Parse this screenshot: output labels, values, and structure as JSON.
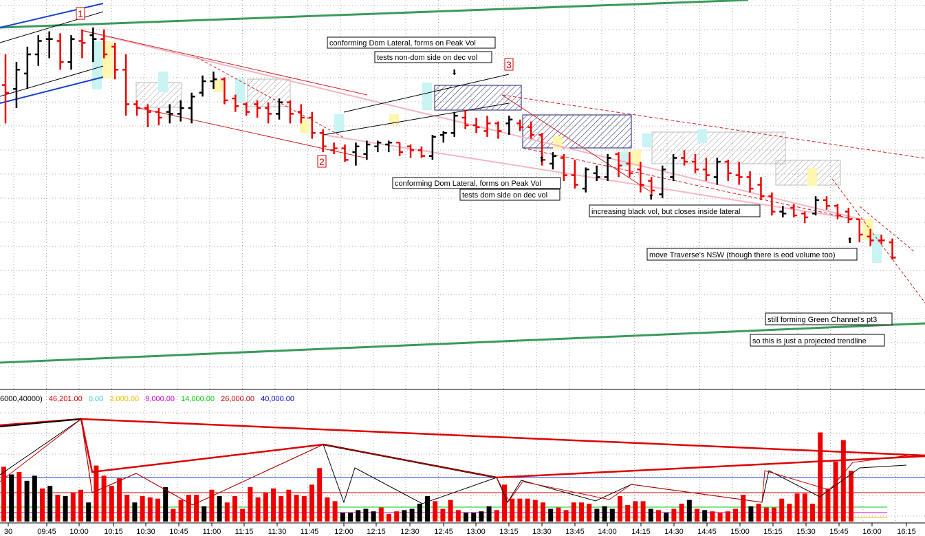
{
  "chart_data": {
    "type": "bar",
    "x_tick_labels": [
      "30",
      "09:45",
      "10:00",
      "10:15",
      "10:30",
      "10:45",
      "11:00",
      "11:15",
      "11:30",
      "11:45",
      "12:00",
      "12:15",
      "12:30",
      "12:45",
      "13:00",
      "13:15",
      "13:30",
      "13:45",
      "14:00",
      "14:15",
      "14:30",
      "14:45",
      "15:00",
      "15:15",
      "15:30",
      "15:45",
      "16:00",
      "16:15"
    ],
    "volume_legend": {
      "prefix": "6000,40000)",
      "current": "46,201.00",
      "levels": [
        {
          "label": "0.00",
          "color": "#33cccc"
        },
        {
          "label": "3,000.00",
          "color": "#e6c200"
        },
        {
          "label": "9,000.00",
          "color": "#cc00cc"
        },
        {
          "label": "14,000.00",
          "color": "#00cc00"
        },
        {
          "label": "26,000.00",
          "color": "#cc0000"
        },
        {
          "label": "40,000.00",
          "color": "#0000cc"
        }
      ]
    },
    "point_labels": [
      "1",
      "2",
      "3"
    ],
    "annotations": [
      "conforming Dom Lateral, forms on Peak Vol",
      "tests non-dom side on dec vol",
      "conforming Dom Lateral, forms on Peak Vol",
      "tests dom side on dec vol",
      "increasing black vol, but closes inside lateral",
      "move Traverse's NSW (though there is eod volume too)",
      "still forming Green Channel's pt3",
      "so this is just a projected trendline"
    ],
    "price_bars": [
      {
        "o": 72,
        "h": 88,
        "l": 52,
        "c": 68,
        "dir": "down"
      },
      {
        "o": 70,
        "h": 84,
        "l": 60,
        "c": 80,
        "dir": "up"
      },
      {
        "o": 78,
        "h": 92,
        "l": 70,
        "c": 88,
        "dir": "up"
      },
      {
        "o": 88,
        "h": 98,
        "l": 82,
        "c": 95,
        "dir": "up"
      },
      {
        "o": 96,
        "h": 100,
        "l": 86,
        "c": 96,
        "dir": "up"
      },
      {
        "o": 95,
        "h": 99,
        "l": 80,
        "c": 84,
        "dir": "down"
      },
      {
        "o": 84,
        "h": 98,
        "l": 80,
        "c": 96,
        "dir": "up"
      },
      {
        "o": 95,
        "h": 101,
        "l": 86,
        "c": 94,
        "dir": "down"
      },
      {
        "o": 98,
        "h": 102,
        "l": 84,
        "c": 96,
        "dir": "up"
      },
      {
        "o": 96,
        "h": 101,
        "l": 86,
        "c": 88,
        "dir": "down"
      },
      {
        "o": 92,
        "h": 94,
        "l": 75,
        "c": 80,
        "dir": "down"
      },
      {
        "o": 80,
        "h": 88,
        "l": 56,
        "c": 62,
        "dir": "down"
      },
      {
        "o": 62,
        "h": 64,
        "l": 56,
        "c": 60,
        "dir": "down"
      },
      {
        "o": 60,
        "h": 62,
        "l": 50,
        "c": 58,
        "dir": "down"
      },
      {
        "o": 58,
        "h": 60,
        "l": 51,
        "c": 55,
        "dir": "down"
      },
      {
        "o": 58,
        "h": 62,
        "l": 52,
        "c": 57,
        "dir": "up"
      },
      {
        "o": 57,
        "h": 64,
        "l": 53,
        "c": 60,
        "dir": "up"
      },
      {
        "o": 60,
        "h": 68,
        "l": 52,
        "c": 66,
        "dir": "up"
      },
      {
        "o": 68,
        "h": 77,
        "l": 66,
        "c": 74,
        "dir": "up"
      },
      {
        "o": 74,
        "h": 79,
        "l": 70,
        "c": 75,
        "dir": "up"
      },
      {
        "o": 75,
        "h": 76,
        "l": 62,
        "c": 64,
        "dir": "down"
      },
      {
        "o": 65,
        "h": 67,
        "l": 58,
        "c": 61,
        "dir": "down"
      },
      {
        "o": 62,
        "h": 63,
        "l": 56,
        "c": 58,
        "dir": "down"
      },
      {
        "o": 62,
        "h": 64,
        "l": 55,
        "c": 60,
        "dir": "down"
      },
      {
        "o": 60,
        "h": 63,
        "l": 52,
        "c": 57,
        "dir": "down"
      },
      {
        "o": 57,
        "h": 65,
        "l": 54,
        "c": 63,
        "dir": "up"
      },
      {
        "o": 63,
        "h": 64,
        "l": 52,
        "c": 57,
        "dir": "down"
      },
      {
        "o": 58,
        "h": 62,
        "l": 52,
        "c": 55,
        "dir": "down"
      },
      {
        "o": 55,
        "h": 58,
        "l": 44,
        "c": 47,
        "dir": "down"
      },
      {
        "o": 47,
        "h": 49,
        "l": 37,
        "c": 40,
        "dir": "down"
      },
      {
        "o": 38,
        "h": 42,
        "l": 36,
        "c": 39,
        "dir": "down"
      },
      {
        "o": 39,
        "h": 41,
        "l": 32,
        "c": 33,
        "dir": "down"
      },
      {
        "o": 37,
        "h": 42,
        "l": 30,
        "c": 40,
        "dir": "up"
      },
      {
        "o": 36,
        "h": 43,
        "l": 33,
        "c": 41,
        "dir": "up"
      },
      {
        "o": 40,
        "h": 43,
        "l": 37,
        "c": 42,
        "dir": "up"
      },
      {
        "o": 41,
        "h": 43,
        "l": 37,
        "c": 42,
        "dir": "up"
      },
      {
        "o": 42,
        "h": 42,
        "l": 35,
        "c": 37,
        "dir": "down"
      },
      {
        "o": 40,
        "h": 41,
        "l": 34,
        "c": 38,
        "dir": "down"
      },
      {
        "o": 38,
        "h": 40,
        "l": 34,
        "c": 35,
        "dir": "down"
      },
      {
        "o": 35,
        "h": 46,
        "l": 33,
        "c": 45,
        "dir": "up"
      },
      {
        "o": 46,
        "h": 48,
        "l": 42,
        "c": 47,
        "dir": "up"
      },
      {
        "o": 47,
        "h": 58,
        "l": 45,
        "c": 56,
        "dir": "up"
      },
      {
        "o": 55,
        "h": 59,
        "l": 49,
        "c": 51,
        "dir": "down"
      },
      {
        "o": 51,
        "h": 55,
        "l": 47,
        "c": 50,
        "dir": "down"
      },
      {
        "o": 48,
        "h": 56,
        "l": 45,
        "c": 52,
        "dir": "down"
      },
      {
        "o": 52,
        "h": 53,
        "l": 44,
        "c": 48,
        "dir": "down"
      },
      {
        "o": 52,
        "h": 56,
        "l": 46,
        "c": 54,
        "dir": "up"
      },
      {
        "o": 52,
        "h": 54,
        "l": 48,
        "c": 50,
        "dir": "down"
      },
      {
        "o": 50,
        "h": 53,
        "l": 44,
        "c": 46,
        "dir": "down"
      },
      {
        "o": 46,
        "h": 47,
        "l": 30,
        "c": 33,
        "dir": "down"
      },
      {
        "o": 31,
        "h": 37,
        "l": 28,
        "c": 35,
        "dir": "up"
      },
      {
        "o": 34,
        "h": 36,
        "l": 22,
        "c": 25,
        "dir": "down"
      },
      {
        "o": 25,
        "h": 33,
        "l": 18,
        "c": 20,
        "dir": "down"
      },
      {
        "o": 18,
        "h": 29,
        "l": 16,
        "c": 28,
        "dir": "up"
      },
      {
        "o": 26,
        "h": 30,
        "l": 22,
        "c": 24,
        "dir": "up"
      },
      {
        "o": 24,
        "h": 36,
        "l": 22,
        "c": 34,
        "dir": "up"
      },
      {
        "o": 36,
        "h": 37,
        "l": 24,
        "c": 30,
        "dir": "down"
      },
      {
        "o": 31,
        "h": 37,
        "l": 24,
        "c": 26,
        "dir": "down"
      },
      {
        "o": 28,
        "h": 32,
        "l": 16,
        "c": 20,
        "dir": "down"
      },
      {
        "o": 22,
        "h": 24,
        "l": 14,
        "c": 17,
        "dir": "down"
      },
      {
        "o": 15,
        "h": 30,
        "l": 13,
        "c": 28,
        "dir": "up"
      },
      {
        "o": 24,
        "h": 36,
        "l": 22,
        "c": 34,
        "dir": "up"
      },
      {
        "o": 34,
        "h": 38,
        "l": 30,
        "c": 32,
        "dir": "down"
      },
      {
        "o": 32,
        "h": 36,
        "l": 26,
        "c": 28,
        "dir": "down"
      },
      {
        "o": 28,
        "h": 34,
        "l": 22,
        "c": 25,
        "dir": "down"
      },
      {
        "o": 24,
        "h": 34,
        "l": 20,
        "c": 32,
        "dir": "up"
      },
      {
        "o": 32,
        "h": 33,
        "l": 22,
        "c": 26,
        "dir": "down"
      },
      {
        "o": 25,
        "h": 32,
        "l": 20,
        "c": 24,
        "dir": "down"
      },
      {
        "o": 24,
        "h": 27,
        "l": 16,
        "c": 18,
        "dir": "down"
      },
      {
        "o": 20,
        "h": 24,
        "l": 12,
        "c": 14,
        "dir": "down"
      },
      {
        "o": 14,
        "h": 16,
        "l": 4,
        "c": 6,
        "dir": "down"
      },
      {
        "o": 6,
        "h": 9,
        "l": 3,
        "c": 5,
        "dir": "up"
      },
      {
        "o": 8,
        "h": 10,
        "l": 3,
        "c": 4,
        "dir": "down"
      },
      {
        "o": 5,
        "h": 6,
        "l": 0,
        "c": 3,
        "dir": "down"
      },
      {
        "o": 5,
        "h": 14,
        "l": 4,
        "c": 12,
        "dir": "up"
      },
      {
        "o": 12,
        "h": 14,
        "l": 7,
        "c": 9,
        "dir": "down"
      },
      {
        "o": 9,
        "h": 10,
        "l": 2,
        "c": 4,
        "dir": "down"
      },
      {
        "o": 6,
        "h": 8,
        "l": 0,
        "c": 2,
        "dir": "down"
      },
      {
        "o": 2,
        "h": 2,
        "l": -10,
        "c": -6,
        "dir": "down"
      },
      {
        "o": -7,
        "h": -3,
        "l": -12,
        "c": -9,
        "dir": "down"
      },
      {
        "o": -9,
        "h": -6,
        "l": -11,
        "c": -9,
        "dir": "down"
      },
      {
        "o": -10,
        "h": -8,
        "l": -19,
        "c": -18,
        "dir": "down"
      }
    ],
    "volume_bars": [
      {
        "v": 43,
        "dir": "down"
      },
      {
        "v": 37,
        "dir": "up"
      },
      {
        "v": 39,
        "dir": "down"
      },
      {
        "v": 32,
        "dir": "up"
      },
      {
        "v": 36,
        "dir": "up"
      },
      {
        "v": 26,
        "dir": "down"
      },
      {
        "v": 28,
        "dir": "up"
      },
      {
        "v": 21,
        "dir": "down"
      },
      {
        "v": 20,
        "dir": "up"
      },
      {
        "v": 23,
        "dir": "down"
      },
      {
        "v": 25,
        "dir": "down"
      },
      {
        "v": 15,
        "dir": "up"
      },
      {
        "v": 44,
        "dir": "down"
      },
      {
        "v": 36,
        "dir": "down"
      },
      {
        "v": 28,
        "dir": "down"
      },
      {
        "v": 34,
        "dir": "down"
      },
      {
        "v": 21,
        "dir": "down"
      },
      {
        "v": 15,
        "dir": "up"
      },
      {
        "v": 20,
        "dir": "down"
      },
      {
        "v": 19,
        "dir": "down"
      },
      {
        "v": 18,
        "dir": "down"
      },
      {
        "v": 27,
        "dir": "up"
      },
      {
        "v": 10,
        "dir": "down"
      },
      {
        "v": 17,
        "dir": "down"
      },
      {
        "v": 21,
        "dir": "down"
      },
      {
        "v": 21,
        "dir": "down"
      },
      {
        "v": 12,
        "dir": "up"
      },
      {
        "v": 25,
        "dir": "down"
      },
      {
        "v": 20,
        "dir": "up"
      },
      {
        "v": 15,
        "dir": "down"
      },
      {
        "v": 20,
        "dir": "down"
      },
      {
        "v": 10,
        "dir": "down"
      },
      {
        "v": 27,
        "dir": "down"
      },
      {
        "v": 19,
        "dir": "down"
      },
      {
        "v": 23,
        "dir": "down"
      },
      {
        "v": 26,
        "dir": "down"
      },
      {
        "v": 20,
        "dir": "down"
      },
      {
        "v": 25,
        "dir": "down"
      },
      {
        "v": 21,
        "dir": "down"
      },
      {
        "v": 20,
        "dir": "down"
      },
      {
        "v": 29,
        "dir": "down"
      },
      {
        "v": 42,
        "dir": "down"
      },
      {
        "v": 19,
        "dir": "down"
      },
      {
        "v": 16,
        "dir": "down"
      },
      {
        "v": 7,
        "dir": "up"
      },
      {
        "v": 7,
        "dir": "up"
      },
      {
        "v": 9,
        "dir": "up"
      },
      {
        "v": 10,
        "dir": "up"
      },
      {
        "v": 8,
        "dir": "up"
      },
      {
        "v": 11,
        "dir": "down"
      },
      {
        "v": 6,
        "dir": "down"
      },
      {
        "v": 8,
        "dir": "down"
      },
      {
        "v": 9,
        "dir": "up"
      },
      {
        "v": 10,
        "dir": "up"
      },
      {
        "v": 14,
        "dir": "up"
      },
      {
        "v": 20,
        "dir": "up"
      },
      {
        "v": 16,
        "dir": "down"
      },
      {
        "v": 10,
        "dir": "down"
      },
      {
        "v": 17,
        "dir": "down"
      },
      {
        "v": 9,
        "dir": "down"
      },
      {
        "v": 7,
        "dir": "up"
      },
      {
        "v": 7,
        "dir": "up"
      },
      {
        "v": 8,
        "dir": "up"
      },
      {
        "v": 12,
        "dir": "up"
      },
      {
        "v": 9,
        "dir": "down"
      },
      {
        "v": 29,
        "dir": "down"
      },
      {
        "v": 18,
        "dir": "down"
      },
      {
        "v": 18,
        "dir": "down"
      },
      {
        "v": 18,
        "dir": "down"
      },
      {
        "v": 17,
        "dir": "down"
      },
      {
        "v": 15,
        "dir": "down"
      },
      {
        "v": 10,
        "dir": "up"
      },
      {
        "v": 11,
        "dir": "down"
      },
      {
        "v": 9,
        "dir": "down"
      },
      {
        "v": 15,
        "dir": "down"
      },
      {
        "v": 15,
        "dir": "down"
      },
      {
        "v": 14,
        "dir": "down"
      },
      {
        "v": 10,
        "dir": "up"
      },
      {
        "v": 12,
        "dir": "up"
      },
      {
        "v": 10,
        "dir": "up"
      },
      {
        "v": 20,
        "dir": "down"
      },
      {
        "v": 13,
        "dir": "down"
      },
      {
        "v": 16,
        "dir": "down"
      },
      {
        "v": 16,
        "dir": "down"
      },
      {
        "v": 10,
        "dir": "up"
      },
      {
        "v": 9,
        "dir": "down"
      },
      {
        "v": 7,
        "dir": "up"
      },
      {
        "v": 10,
        "dir": "down"
      },
      {
        "v": 14,
        "dir": "down"
      },
      {
        "v": 17,
        "dir": "up"
      },
      {
        "v": 10,
        "dir": "down"
      },
      {
        "v": 9,
        "dir": "up"
      },
      {
        "v": 8,
        "dir": "down"
      },
      {
        "v": 7,
        "dir": "down"
      },
      {
        "v": 8,
        "dir": "down"
      },
      {
        "v": 10,
        "dir": "down"
      },
      {
        "v": 21,
        "dir": "down"
      },
      {
        "v": 12,
        "dir": "up"
      },
      {
        "v": 14,
        "dir": "down"
      },
      {
        "v": 11,
        "dir": "down"
      },
      {
        "v": 11,
        "dir": "down"
      },
      {
        "v": 18,
        "dir": "down"
      },
      {
        "v": 14,
        "dir": "down"
      },
      {
        "v": 22,
        "dir": "down"
      },
      {
        "v": 22,
        "dir": "down"
      },
      {
        "v": 14,
        "dir": "down"
      },
      {
        "v": 70,
        "dir": "down"
      },
      {
        "v": 26,
        "dir": "down"
      },
      {
        "v": 47,
        "dir": "down"
      },
      {
        "v": 64,
        "dir": "down"
      },
      {
        "v": 40,
        "dir": "down"
      }
    ],
    "colors": {
      "up": "#000000",
      "down": "#ee0000",
      "green_channel": "#3a9a5a",
      "blue_channel": "#1a3fd0",
      "pink_line": "#f4b6c4",
      "grid": "#8a8a8a"
    }
  }
}
